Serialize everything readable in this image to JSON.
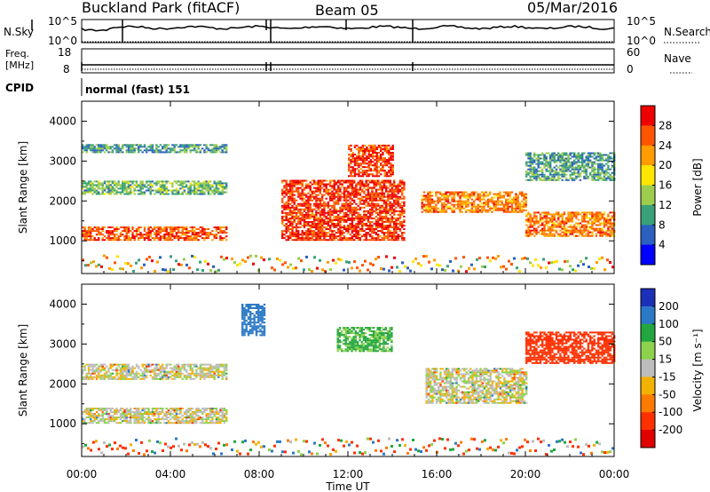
{
  "header": {
    "station": "Buckland Park (fitACF)",
    "beam": "Beam 05",
    "date": "05/Mar/2016"
  },
  "noise_panel": {
    "left_label": "N.Sky",
    "right_label": "N.Search",
    "left_ticks": [
      "10^5",
      "10^0"
    ],
    "right_ticks": [
      "10^5",
      "10^0"
    ]
  },
  "freq_panel": {
    "label_line1": "Freq.",
    "label_line2": "[MHz]",
    "left_ticks": [
      "18",
      "8"
    ],
    "right_label": "Nave",
    "right_ticks": [
      "60",
      "0"
    ]
  },
  "cpid": {
    "label": "CPID",
    "value": "normal (fast) 151"
  },
  "time_axis": {
    "labels": [
      "00:00",
      "04:00",
      "08:00",
      "12:00",
      "16:00",
      "20:00",
      "00:00"
    ],
    "title": "Time UT"
  },
  "panels": {
    "power": {
      "ylabel": "Slant Range [km]",
      "yticks": [
        "1000",
        "2000",
        "3000",
        "4000"
      ],
      "colorbar_label": "Power [dB]",
      "colorbar_ticks": [
        "4",
        "8",
        "12",
        "16",
        "20",
        "24",
        "28"
      ],
      "colors": [
        "#0000ff",
        "#2b5fc0",
        "#3aa07a",
        "#9ccd4c",
        "#ffe600",
        "#ff9c00",
        "#ff5500",
        "#ee0000"
      ]
    },
    "velocity": {
      "ylabel": "Slant Range [km]",
      "yticks": [
        "1000",
        "2000",
        "3000",
        "4000"
      ],
      "colorbar_label": "Velocity [m s⁻¹]",
      "colorbar_ticks": [
        "200",
        "100",
        "50",
        "15",
        "-15",
        "-50",
        "-100",
        "-200"
      ],
      "colors": [
        "#1c2fb8",
        "#2b79c6",
        "#23a640",
        "#8cd24c",
        "#bdbdbd",
        "#f3b100",
        "#ff7a00",
        "#ff3000",
        "#e00000"
      ]
    }
  },
  "chart_data": [
    {
      "type": "heatmap",
      "title": "Power",
      "xlabel": "Time UT",
      "ylabel": "Slant Range [km]",
      "xlim": [
        0,
        24
      ],
      "ylim": [
        180,
        4500
      ],
      "colorbar": "Power [dB]",
      "bands": [
        {
          "time": [
            0,
            6.5
          ],
          "range": [
            1000,
            1350
          ],
          "value": 26
        },
        {
          "time": [
            0,
            6.5
          ],
          "range": [
            2150,
            2500
          ],
          "value": 12
        },
        {
          "time": [
            0,
            6.5
          ],
          "range": [
            3200,
            3400
          ],
          "value": 10
        },
        {
          "time": [
            9,
            14.5
          ],
          "range": [
            1000,
            2500
          ],
          "value": 28
        },
        {
          "time": [
            12,
            14
          ],
          "range": [
            2600,
            3400
          ],
          "value": 28
        },
        {
          "time": [
            15.3,
            20
          ],
          "range": [
            1700,
            2200
          ],
          "value": 24
        },
        {
          "time": [
            20,
            24
          ],
          "range": [
            1100,
            1700
          ],
          "value": 24
        },
        {
          "time": [
            20,
            24
          ],
          "range": [
            2500,
            3200
          ],
          "value": 10
        }
      ]
    },
    {
      "type": "heatmap",
      "title": "Velocity",
      "xlabel": "Time UT",
      "ylabel": "Slant Range [km]",
      "xlim": [
        0,
        24
      ],
      "ylim": [
        180,
        4500
      ],
      "colorbar": "Velocity [m s⁻¹]",
      "bands": [
        {
          "time": [
            0,
            6.5
          ],
          "range": [
            1000,
            1400
          ],
          "value": 0
        },
        {
          "time": [
            0,
            6.5
          ],
          "range": [
            2100,
            2500
          ],
          "value": 0
        },
        {
          "time": [
            7.2,
            8.2
          ],
          "range": [
            3200,
            4000
          ],
          "value": 150
        },
        {
          "time": [
            11.5,
            14
          ],
          "range": [
            2800,
            3400
          ],
          "value": 60
        },
        {
          "time": [
            15.5,
            20
          ],
          "range": [
            1500,
            2400
          ],
          "value": 0
        },
        {
          "time": [
            20,
            24
          ],
          "range": [
            2500,
            3300
          ],
          "value": -150
        }
      ]
    }
  ]
}
